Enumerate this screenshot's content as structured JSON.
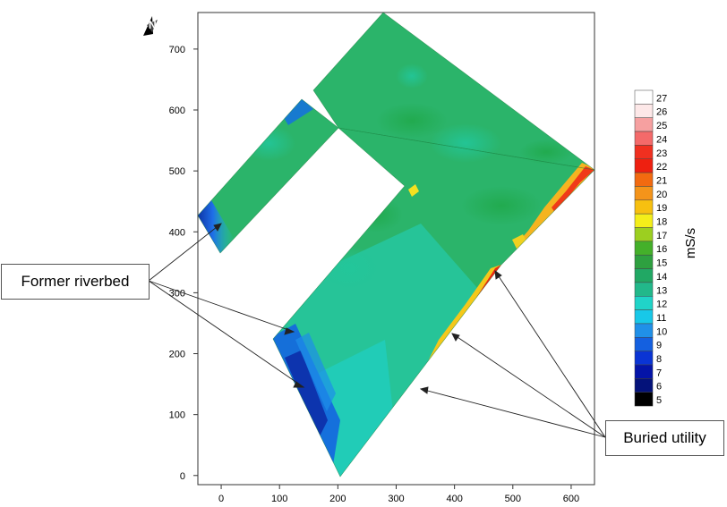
{
  "plot": {
    "x_ticks": [
      0,
      100,
      200,
      300,
      400,
      500,
      600
    ],
    "y_ticks": [
      0,
      100,
      200,
      300,
      400,
      500,
      600,
      700
    ],
    "x_range": [
      -40,
      640
    ],
    "y_range": [
      -15,
      760
    ]
  },
  "legend": {
    "unit": "mS/s",
    "levels": [
      27,
      26,
      25,
      24,
      23,
      22,
      21,
      20,
      19,
      18,
      17,
      16,
      15,
      14,
      13,
      12,
      11,
      10,
      9,
      8,
      7,
      6,
      5
    ],
    "colors": [
      "#ffffff",
      "#fde8e8",
      "#f6a0a0",
      "#f46a6a",
      "#f03020",
      "#ee2010",
      "#f26a10",
      "#f4941a",
      "#f7c010",
      "#f4ee1a",
      "#9ccf20",
      "#44b02a",
      "#2ea040",
      "#21a864",
      "#22b88a",
      "#20d4c8",
      "#18c8e8",
      "#2090e8",
      "#1460e0",
      "#0a34d4",
      "#0414a8",
      "#04127a",
      "#000000"
    ]
  },
  "labels": {
    "riverbed": "Former riverbed",
    "utility": "Buried utility"
  },
  "north_arrow": {
    "icon": "north-arrow-icon",
    "letter": "N"
  }
}
